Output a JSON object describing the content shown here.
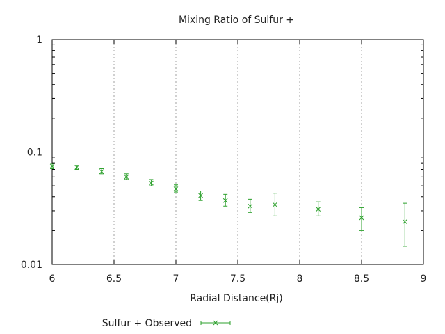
{
  "chart_data": {
    "type": "scatter",
    "title": "Mixing Ratio of Sulfur +",
    "xlabel": "Radial Distance(Rj)",
    "ylabel": "",
    "xlim": [
      6,
      9
    ],
    "ylim": [
      0.01,
      1
    ],
    "yscale": "log",
    "grid": true,
    "legend_position": "bottom-left",
    "xticks": [
      "6",
      "6.5",
      "7",
      "7.5",
      "8",
      "8.5",
      "9"
    ],
    "xtick_values": [
      6,
      6.5,
      7,
      7.5,
      8,
      8.5,
      9
    ],
    "yticks": [
      "0.01",
      "0.1",
      "1"
    ],
    "ytick_values": [
      0.01,
      0.1,
      1
    ],
    "series": [
      {
        "name": "Sulfur + Observed",
        "color": "#2ca02c",
        "marker": "x",
        "errorbars": true,
        "x": [
          6.0,
          6.2,
          6.4,
          6.6,
          6.8,
          7.0,
          7.2,
          7.4,
          7.6,
          7.8,
          8.15,
          8.5,
          8.85
        ],
        "y": [
          0.075,
          0.073,
          0.067,
          0.06,
          0.053,
          0.047,
          0.041,
          0.037,
          0.033,
          0.034,
          0.031,
          0.026,
          0.024
        ],
        "ylow": [
          0.071,
          0.07,
          0.064,
          0.057,
          0.05,
          0.044,
          0.037,
          0.033,
          0.029,
          0.027,
          0.027,
          0.02,
          0.0145
        ],
        "yhigh": [
          0.079,
          0.076,
          0.071,
          0.064,
          0.057,
          0.051,
          0.045,
          0.042,
          0.038,
          0.043,
          0.036,
          0.032,
          0.035
        ]
      }
    ]
  }
}
